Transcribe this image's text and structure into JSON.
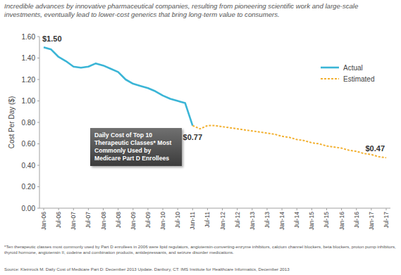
{
  "chart_data": {
    "type": "line",
    "title": "Daily Cost of Top 10 Therapeutic Classes* Most Commonly Used by Medicare Part D Enrollees",
    "subtitle": "Incredible advances by innovative pharmaceutical companies, resulting from pioneering scientific work and large-scale investments, eventually lead to lower-cost generics that bring long-term value to consumers.",
    "y_label": "Cost Per Day ($)",
    "footnote": "*Ten therapeutic classes most commonly used by Part D enrollees in 2006 were lipid regulators, angiotensin-converting-enzyme inhibitors, calcium channel blockers, beta blockers, proton pump inhibitors, thyroid hormone, angiotensin II, codeine and combination products, antidepressants, and seizure disorder medications.",
    "source": "Source: Kleinrock M. Daily Cost of Medicare Part D: December 2013 Update. Danbury, CT: IMS Institute for Healthcare Informatics, December 2013",
    "categories": [
      "Jan-06",
      null,
      "Jul-06",
      null,
      "Jan-07",
      null,
      "Jul-07",
      null,
      "Jan-08",
      null,
      "Jul-08",
      null,
      "Jan-09",
      null,
      "Jul-09",
      null,
      "Jan-10",
      null,
      "Jul-10",
      null,
      "Jan-11",
      null,
      "Jul-11",
      null,
      "Jan-12",
      null,
      "Jul-12",
      null,
      "Jan-13",
      null,
      "Jul-13",
      null,
      "Jan-14",
      null,
      "Jul-14",
      null,
      "Jan-15",
      null,
      "Jul-15",
      null,
      "Jan-16",
      null,
      "Jul-16",
      null,
      "Jan-17",
      null,
      "Jul-17"
    ],
    "series": [
      {
        "name": "Actual",
        "color": "#3bb5d6",
        "line_style": "solid",
        "values": [
          1.5,
          1.48,
          1.41,
          1.37,
          1.32,
          1.31,
          1.32,
          1.35,
          1.33,
          1.3,
          1.27,
          1.2,
          1.16,
          1.14,
          1.12,
          1.09,
          1.05,
          1.02,
          1.0,
          0.98,
          0.77,
          null,
          null,
          null,
          null,
          null,
          null,
          null,
          null,
          null,
          null,
          null,
          null,
          null,
          null,
          null,
          null,
          null,
          null,
          null,
          null,
          null,
          null,
          null,
          null,
          null,
          null
        ],
        "value_labels": [
          "$1.50",
          null,
          null,
          null,
          null,
          null,
          null,
          null,
          null,
          null,
          null,
          null,
          null,
          null,
          null,
          null,
          null,
          null,
          null,
          null,
          "$0.77",
          null,
          null,
          null,
          null,
          null,
          null,
          null,
          null,
          null,
          null,
          null,
          null,
          null,
          null,
          null,
          null,
          null,
          null,
          null,
          null,
          null,
          null,
          null,
          null,
          null,
          null
        ]
      },
      {
        "name": "Estimated",
        "color": "#f2b133",
        "line_style": "dashed",
        "values": [
          null,
          null,
          null,
          null,
          null,
          null,
          null,
          null,
          null,
          null,
          null,
          null,
          null,
          null,
          null,
          null,
          null,
          null,
          null,
          null,
          0.77,
          0.74,
          0.77,
          0.77,
          0.76,
          0.75,
          0.74,
          0.73,
          0.72,
          0.71,
          0.7,
          0.69,
          0.67,
          0.66,
          0.64,
          0.63,
          0.61,
          0.6,
          0.58,
          0.57,
          0.56,
          0.54,
          0.53,
          0.51,
          0.5,
          0.48,
          0.47
        ],
        "value_labels": [
          null,
          null,
          null,
          null,
          null,
          null,
          null,
          null,
          null,
          null,
          null,
          null,
          null,
          null,
          null,
          null,
          null,
          null,
          null,
          null,
          null,
          null,
          null,
          null,
          null,
          null,
          null,
          null,
          null,
          null,
          null,
          null,
          null,
          null,
          null,
          null,
          null,
          null,
          null,
          null,
          null,
          null,
          null,
          null,
          null,
          null,
          "$0.47"
        ]
      }
    ],
    "ylim": [
      0,
      1.6
    ],
    "yticks": [
      {
        "value": 0,
        "label": "0.00"
      },
      {
        "value": 0.2,
        "label": "0.20"
      },
      {
        "value": 0.4,
        "label": "0.40"
      },
      {
        "value": 0.6,
        "label": "0.60"
      },
      {
        "value": 0.8,
        "label": "0.80"
      },
      {
        "value": 1.0,
        "label": "1.00"
      },
      {
        "value": 1.2,
        "label": "1.20"
      },
      {
        "value": 1.4,
        "label": "1.40"
      },
      {
        "value": 1.6,
        "label": "1.60"
      }
    ],
    "grid": false,
    "legend": "top-right"
  }
}
